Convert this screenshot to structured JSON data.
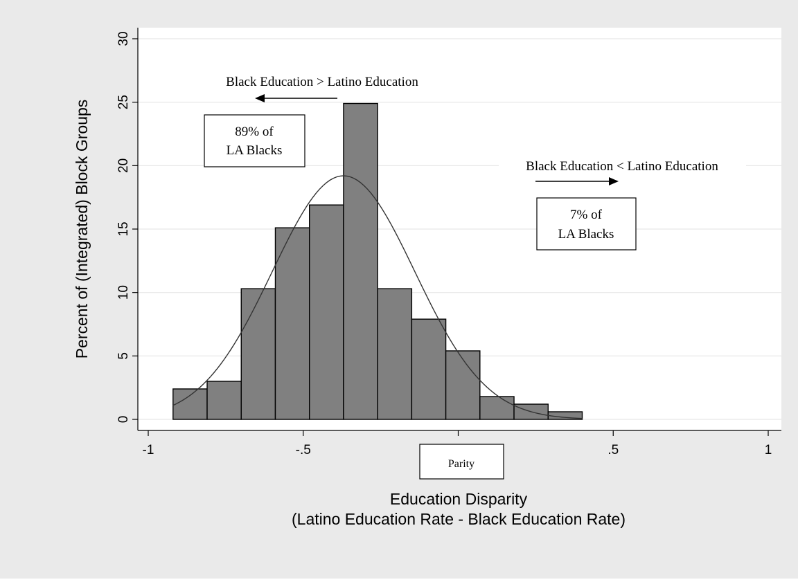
{
  "chart_data": {
    "type": "bar",
    "subtype": "histogram-with-normal-density",
    "bins": [
      {
        "x0": -0.92,
        "x1": -0.81,
        "value": 2.4
      },
      {
        "x0": -0.81,
        "x1": -0.7,
        "value": 3.0
      },
      {
        "x0": -0.7,
        "x1": -0.59,
        "value": 10.3
      },
      {
        "x0": -0.59,
        "x1": -0.48,
        "value": 15.1
      },
      {
        "x0": -0.48,
        "x1": -0.37,
        "value": 16.9
      },
      {
        "x0": -0.37,
        "x1": -0.26,
        "value": 24.9
      },
      {
        "x0": -0.26,
        "x1": -0.15,
        "value": 10.3
      },
      {
        "x0": -0.15,
        "x1": -0.04,
        "value": 7.9
      },
      {
        "x0": -0.04,
        "x1": 0.07,
        "value": 5.4
      },
      {
        "x0": 0.07,
        "x1": 0.18,
        "value": 1.8
      },
      {
        "x0": 0.18,
        "x1": 0.29,
        "value": 1.2
      },
      {
        "x0": 0.29,
        "x1": 0.4,
        "value": 0.6
      }
    ],
    "density_curve": {
      "mean": -0.37,
      "sd": 0.23,
      "peak": 19.2,
      "x_range": [
        -0.92,
        0.4
      ]
    },
    "xlabel": "Education Disparity",
    "xlabel_line2": "(Latino Education Rate - Black Education Rate)",
    "ylabel": "Percent of (Integrated) Block Groups",
    "xlim": [
      -1,
      1
    ],
    "ylim": [
      0,
      30
    ],
    "x_ticks": [
      -1,
      -0.5,
      0,
      0.5,
      1
    ],
    "x_tick_labels": [
      "-1",
      "-.5",
      "",
      ".5",
      "1"
    ],
    "y_ticks": [
      0,
      5,
      10,
      15,
      20,
      25,
      30
    ],
    "y_tick_labels": [
      "0",
      "5",
      "10",
      "15",
      "20",
      "25",
      "30"
    ],
    "grid": true,
    "annotations": {
      "left_heading": "Black Education > Latino Education",
      "left_box_line1": "89% of",
      "left_box_line2": "LA Blacks",
      "right_heading": "Black Education < Latino Education",
      "right_box_line1": "7% of",
      "right_box_line2": "LA Blacks",
      "parity_label": "Parity"
    }
  },
  "colors": {
    "outer_background": "#eaeaea",
    "plot_background": "#ffffff",
    "bar_fill": "#808080",
    "bar_stroke": "#000000",
    "grid": "#e6e6e6",
    "curve": "#333333"
  }
}
